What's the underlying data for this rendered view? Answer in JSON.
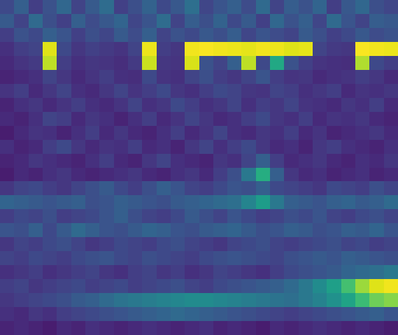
{
  "chart_data": {
    "type": "heatmap",
    "color": "viridis",
    "tick_labels": false,
    "zlim": [
      0,
      100
    ],
    "z": [
      [
        22,
        30,
        18,
        25,
        33,
        20,
        28,
        35,
        19,
        24,
        31,
        22,
        27,
        36,
        21,
        26,
        30,
        23,
        34,
        20,
        29,
        25,
        32,
        18,
        27,
        33,
        24,
        21
      ],
      [
        28,
        20,
        34,
        24,
        19,
        30,
        23,
        27,
        32,
        21,
        26,
        35,
        20,
        29,
        24,
        31,
        22,
        28,
        19,
        33,
        25,
        30,
        21,
        34,
        26,
        20,
        29,
        27
      ],
      [
        18,
        25,
        22,
        30,
        26,
        19,
        24,
        21,
        28,
        23,
        30,
        20,
        25,
        22,
        27,
        24,
        29,
        21,
        26,
        23,
        20,
        28,
        24,
        19,
        22,
        27,
        23,
        25
      ],
      [
        14,
        18,
        20,
        95,
        22,
        16,
        19,
        17,
        15,
        20,
        97,
        18,
        16,
        98,
        99,
        98,
        97,
        96,
        98,
        97,
        95,
        96,
        20,
        17,
        16,
        99,
        98,
        97
      ],
      [
        12,
        15,
        17,
        90,
        18,
        14,
        16,
        15,
        13,
        17,
        92,
        16,
        15,
        94,
        25,
        20,
        30,
        90,
        22,
        60,
        25,
        19,
        15,
        14,
        13,
        88,
        22,
        18
      ],
      [
        10,
        12,
        14,
        20,
        16,
        12,
        15,
        18,
        14,
        13,
        22,
        15,
        14,
        20,
        24,
        18,
        16,
        20,
        26,
        18,
        15,
        16,
        12,
        14,
        15,
        18,
        16,
        12
      ],
      [
        15,
        18,
        12,
        16,
        20,
        14,
        12,
        16,
        20,
        15,
        18,
        22,
        16,
        14,
        18,
        22,
        20,
        16,
        15,
        20,
        18,
        14,
        16,
        18,
        12,
        15,
        14,
        16
      ],
      [
        10,
        14,
        16,
        12,
        15,
        18,
        14,
        12,
        15,
        20,
        14,
        16,
        22,
        18,
        14,
        16,
        20,
        14,
        18,
        16,
        20,
        15,
        14,
        12,
        16,
        14,
        18,
        12
      ],
      [
        12,
        10,
        14,
        20,
        18,
        12,
        16,
        14,
        10,
        14,
        18,
        12,
        15,
        20,
        16,
        12,
        14,
        18,
        22,
        16,
        14,
        18,
        12,
        15,
        14,
        16,
        12,
        10
      ],
      [
        8,
        12,
        15,
        14,
        10,
        14,
        18,
        12,
        16,
        12,
        10,
        14,
        18,
        12,
        15,
        20,
        14,
        12,
        16,
        14,
        18,
        12,
        15,
        10,
        12,
        14,
        16,
        12
      ],
      [
        14,
        10,
        12,
        18,
        22,
        16,
        12,
        15,
        14,
        18,
        12,
        14,
        10,
        16,
        20,
        14,
        18,
        22,
        16,
        12,
        14,
        10,
        16,
        18,
        14,
        12,
        10,
        14
      ],
      [
        10,
        12,
        16,
        14,
        12,
        10,
        14,
        18,
        12,
        10,
        16,
        20,
        14,
        12,
        10,
        16,
        14,
        20,
        30,
        18,
        12,
        14,
        16,
        12,
        10,
        14,
        12,
        16
      ],
      [
        8,
        12,
        10,
        14,
        16,
        12,
        10,
        12,
        14,
        16,
        12,
        10,
        14,
        16,
        12,
        18,
        24,
        40,
        62,
        30,
        16,
        12,
        14,
        10,
        12,
        14,
        10,
        12
      ],
      [
        16,
        20,
        22,
        18,
        16,
        20,
        24,
        28,
        22,
        18,
        24,
        30,
        26,
        20,
        18,
        22,
        26,
        24,
        30,
        22,
        20,
        18,
        16,
        22,
        20,
        18,
        24,
        20
      ],
      [
        32,
        30,
        28,
        26,
        28,
        30,
        24,
        26,
        30,
        28,
        26,
        24,
        28,
        30,
        32,
        34,
        36,
        45,
        55,
        40,
        30,
        28,
        26,
        30,
        32,
        28,
        30,
        34
      ],
      [
        18,
        22,
        20,
        24,
        18,
        20,
        22,
        26,
        30,
        24,
        20,
        18,
        22,
        28,
        24,
        20,
        26,
        22,
        18,
        20,
        24,
        22,
        26,
        20,
        18,
        22,
        24,
        20
      ],
      [
        26,
        24,
        30,
        22,
        28,
        34,
        30,
        26,
        24,
        28,
        32,
        30,
        26,
        24,
        28,
        30,
        32,
        28,
        24,
        26,
        30,
        28,
        24,
        26,
        30,
        28,
        32,
        26
      ],
      [
        16,
        20,
        18,
        22,
        24,
        20,
        16,
        18,
        22,
        20,
        18,
        22,
        24,
        20,
        18,
        16,
        20,
        22,
        24,
        20,
        18,
        20,
        22,
        24,
        20,
        22,
        18,
        20
      ],
      [
        20,
        18,
        22,
        20,
        18,
        22,
        24,
        26,
        22,
        20,
        24,
        22,
        20,
        18,
        22,
        24,
        26,
        24,
        22,
        20,
        24,
        26,
        28,
        26,
        30,
        28,
        26,
        24
      ],
      [
        14,
        16,
        18,
        14,
        16,
        18,
        20,
        16,
        14,
        18,
        20,
        16,
        18,
        14,
        16,
        20,
        18,
        16,
        14,
        18,
        22,
        24,
        26,
        28,
        32,
        34,
        36,
        40
      ],
      [
        18,
        20,
        16,
        18,
        20,
        22,
        18,
        20,
        22,
        18,
        20,
        22,
        24,
        20,
        18,
        22,
        24,
        26,
        28,
        30,
        34,
        40,
        48,
        56,
        70,
        85,
        95,
        98
      ],
      [
        16,
        18,
        20,
        22,
        24,
        28,
        30,
        34,
        38,
        40,
        42,
        44,
        46,
        48,
        48,
        46,
        44,
        42,
        40,
        38,
        36,
        40,
        44,
        50,
        58,
        68,
        78,
        82
      ],
      [
        14,
        12,
        16,
        14,
        18,
        20,
        22,
        24,
        26,
        28,
        30,
        32,
        34,
        32,
        30,
        28,
        26,
        24,
        22,
        20,
        18,
        20,
        22,
        24,
        26,
        28,
        30,
        26
      ],
      [
        10,
        12,
        10,
        8,
        12,
        10,
        14,
        12,
        10,
        12,
        14,
        12,
        10,
        12,
        14,
        10,
        12,
        10,
        8,
        12,
        10,
        12,
        14,
        12,
        10,
        12,
        10,
        8
      ]
    ]
  }
}
